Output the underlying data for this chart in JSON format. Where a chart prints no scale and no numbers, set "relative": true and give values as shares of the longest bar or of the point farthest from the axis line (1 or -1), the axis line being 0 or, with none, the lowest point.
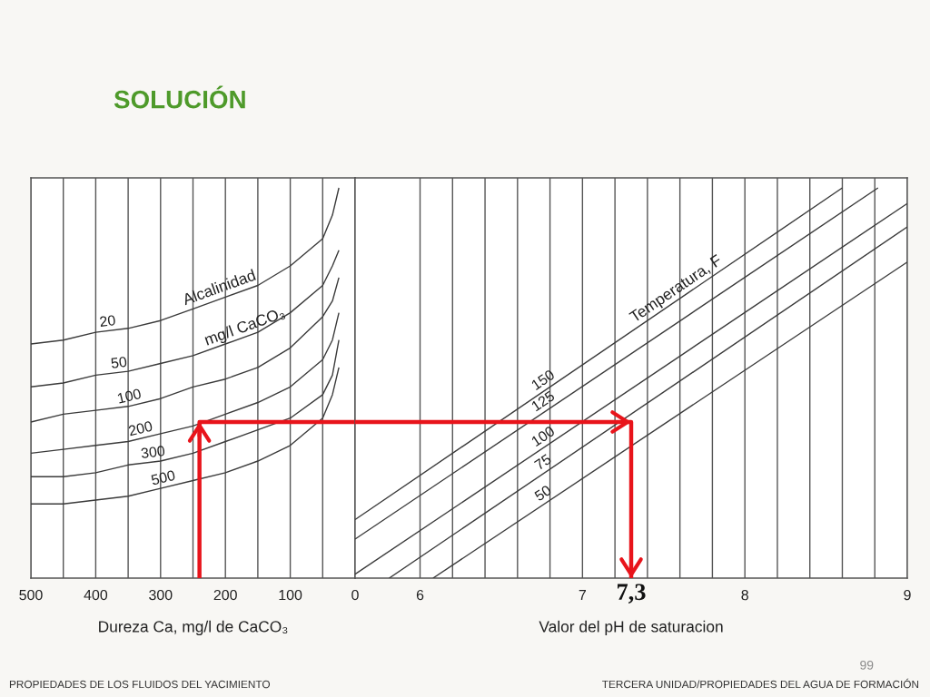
{
  "chart_data": [
    {
      "type": "line",
      "title": "SOLUCIÓN",
      "xlabel": "Dureza Ca, mg/l de CaCO₃",
      "relative": true,
      "xlim": [
        500,
        0
      ],
      "xticks": [
        500,
        {
          "value": 450,
          "label": null
        },
        400,
        {
          "value": 350,
          "label": null
        },
        300,
        {
          "value": 250,
          "label": null
        },
        200,
        {
          "value": 150,
          "label": null
        },
        100,
        {
          "value": 50,
          "label": null
        },
        0
      ],
      "grid": "x",
      "tick_labels": "x",
      "x": [
        500,
        450,
        400,
        350,
        300,
        250,
        200,
        150,
        100,
        50,
        35,
        25
      ],
      "series": [
        {
          "name": "20",
          "color": "#3a3a3a",
          "values": [
            0.6,
            0.61,
            0.63,
            0.64,
            0.66,
            0.69,
            0.72,
            0.75,
            0.8,
            0.87,
            0.93,
            1.0
          ]
        },
        {
          "name": "50",
          "color": "#3a3a3a",
          "values": [
            0.49,
            0.5,
            0.52,
            0.53,
            0.55,
            0.57,
            0.6,
            0.63,
            0.68,
            0.75,
            0.8,
            0.84
          ]
        },
        {
          "name": "100",
          "color": "#3a3a3a",
          "values": [
            0.4,
            0.42,
            0.43,
            0.44,
            0.46,
            0.49,
            0.51,
            0.54,
            0.59,
            0.67,
            0.71,
            0.77
          ]
        },
        {
          "name": "200",
          "color": "#3a3a3a",
          "values": [
            0.32,
            0.33,
            0.34,
            0.35,
            0.37,
            0.39,
            0.42,
            0.45,
            0.49,
            0.56,
            0.61,
            0.68
          ]
        },
        {
          "name": "300",
          "color": "#3a3a3a",
          "values": [
            0.26,
            0.26,
            0.27,
            0.29,
            0.3,
            0.32,
            0.35,
            0.38,
            0.41,
            0.47,
            0.52,
            0.61
          ]
        },
        {
          "name": "500",
          "color": "#3a3a3a",
          "values": [
            0.19,
            0.19,
            0.2,
            0.21,
            0.23,
            0.25,
            0.27,
            0.3,
            0.34,
            0.41,
            0.47,
            0.54
          ]
        },
        {
          "color": "#e8141b",
          "x": [
            240,
            240,
            0
          ],
          "values": [
            0,
            0.4,
            0.4
          ]
        }
      ],
      "annotations": [
        {
          "text": "Alcalinidad",
          "x": 204,
          "y": 0.72
        },
        {
          "text": "mg/l CaCO₃",
          "x": 165,
          "y": 0.62
        },
        "PROPIEDADES DE LOS FLUIDOS DEL YACIMIENTO"
      ]
    },
    {
      "type": "line",
      "xlabel": "Valor del pH de saturacion",
      "relative": true,
      "xlim": [
        5.6,
        9
      ],
      "xticks": [
        6,
        {
          "value": 6.2,
          "label": null
        },
        {
          "value": 6.4,
          "label": null
        },
        {
          "value": 6.6,
          "label": null
        },
        {
          "value": 6.8,
          "label": null
        },
        7,
        {
          "value": 7.2,
          "label": null
        },
        {
          "value": 7.4,
          "label": null
        },
        {
          "value": 7.6,
          "label": null
        },
        {
          "value": 7.8,
          "label": null
        },
        8,
        {
          "value": 8.2,
          "label": null
        },
        {
          "value": 8.4,
          "label": null
        },
        {
          "value": 8.6,
          "label": null
        },
        {
          "value": 8.8,
          "label": null
        },
        9
      ],
      "grid": "x",
      "tick_labels": "x",
      "series": [
        {
          "name": "150",
          "color": "#3a3a3a",
          "x": [
            5.6,
            8.6
          ],
          "values": [
            0.15,
            1.0
          ]
        },
        {
          "name": "125",
          "color": "#3a3a3a",
          "x": [
            5.6,
            8.82
          ],
          "values": [
            0.1,
            1.0
          ]
        },
        {
          "name": "100",
          "color": "#3a3a3a",
          "x": [
            5.6,
            9.0
          ],
          "values": [
            0.01,
            0.96
          ]
        },
        {
          "name": "75",
          "color": "#3a3a3a",
          "x": [
            5.81,
            9.0
          ],
          "values": [
            0,
            0.9
          ]
        },
        {
          "name": "50",
          "color": "#3a3a3a",
          "x": [
            6.08,
            9.0
          ],
          "values": [
            0,
            0.81
          ]
        },
        {
          "color": "#e8141b",
          "x": [
            5.6,
            7.3,
            7.3
          ],
          "values": [
            0.4,
            0.4,
            0
          ]
        }
      ],
      "annotations": [
        {
          "text": "Temperatura, F",
          "x": 7.61,
          "y": 0.72
        },
        {
          "text": "7,3",
          "x": 7.3,
          "y": 0
        },
        "99",
        "TERCERA UNIDAD/PROPIEDADES DEL AGUA DE FORMACIÓN"
      ]
    }
  ]
}
